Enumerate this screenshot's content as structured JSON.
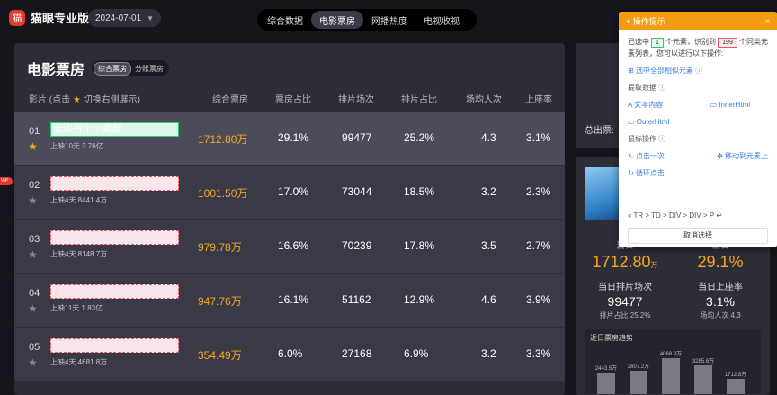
{
  "app": {
    "logo_glyph": "猫",
    "title": "猫眼专业版"
  },
  "header": {
    "date": "2024-07-01",
    "tabs": [
      "综合数据",
      "电影票房",
      "网播热度",
      "电视收视"
    ]
  },
  "panel": {
    "title": "电影票房",
    "subtabs": [
      "综合票房",
      "分账票房"
    ]
  },
  "table": {
    "headers": {
      "film_pre": "影片 (点击",
      "film_post": "切换右侧展示)",
      "box": "综合票房",
      "share": "票房占比",
      "shows": "排片场次",
      "show_share": "排片占比",
      "avg": "场均人次",
      "occ": "上座率"
    },
    "rows": [
      {
        "rank": "01",
        "name": "云边有个小卖部",
        "meta": "上映10天  3.76亿",
        "box": "1712.80万",
        "share": "29.1%",
        "shows": "99477",
        "show_share": "25.2%",
        "avg": "4.3",
        "occ": "3.1%"
      },
      {
        "rank": "02",
        "name": "",
        "meta": "上映4天  8441.4万",
        "box": "1001.50万",
        "share": "17.0%",
        "shows": "73044",
        "show_share": "18.5%",
        "avg": "3.2",
        "occ": "2.3%"
      },
      {
        "rank": "03",
        "name": "",
        "meta": "上映4天  8148.7万",
        "box": "979.78万",
        "share": "16.6%",
        "shows": "70239",
        "show_share": "17.8%",
        "avg": "3.5",
        "occ": "2.7%"
      },
      {
        "rank": "04",
        "name": "",
        "meta": "上映11天  1.83亿",
        "box": "947.76万",
        "share": "16.1%",
        "shows": "51162",
        "show_share": "12.9%",
        "avg": "4.6",
        "occ": "3.9%"
      },
      {
        "rank": "05",
        "name": "",
        "meta": "上映4天  4681.8万",
        "box": "354.49万",
        "share": "6.0%",
        "shows": "27168",
        "show_share": "6.9%",
        "avg": "3.2",
        "occ": "3.3%"
      }
    ]
  },
  "right": {
    "total_label": "总出票:",
    "today_box_label": "当日",
    "today_box_value": "1712.80",
    "today_box_unit": "万",
    "today_share_label": "当日",
    "today_share_value": "29.1%",
    "shows_label": "当日排片场次",
    "shows_value": "99477",
    "shows_sub": "排片占比 25.2%",
    "occ_label": "当日上座率",
    "occ_value": "3.1%",
    "occ_sub": "场均人次 4.3",
    "trend_title": "近日票房趋势",
    "trend_bars": [
      {
        "label": "2443.5万",
        "value": 2443.5
      },
      {
        "label": "2607.2万",
        "value": 2607.2
      },
      {
        "label": "4068.9万",
        "value": 4068.9
      },
      {
        "label": "3285.6万",
        "value": 3285.6
      },
      {
        "label": "1712.8万",
        "value": 1712.8
      }
    ]
  },
  "popup": {
    "title": "操作提示",
    "collapse_glyph": "«",
    "line1_pre": "已选中",
    "selected": "1",
    "line1_mid": "个元素，识别到",
    "found": "199",
    "line1_post": "个同类元素列表，您可以进行以下操作:",
    "select_all": "选中全部相似元素",
    "extract_label": "提取数据",
    "text_content": "文本内容",
    "inner_html": "InnerHtml",
    "outer_html": "OuterHtml",
    "mouse_label": "鼠标操作",
    "click_once": "点击一次",
    "move_to": "移动到元素上",
    "loop_click": "循环点击",
    "crumbs": "«    TR  >  TD  >  DIV  >  DIV  >  P  ↩",
    "cancel": "取消选择"
  },
  "side_badge": "VIP"
}
